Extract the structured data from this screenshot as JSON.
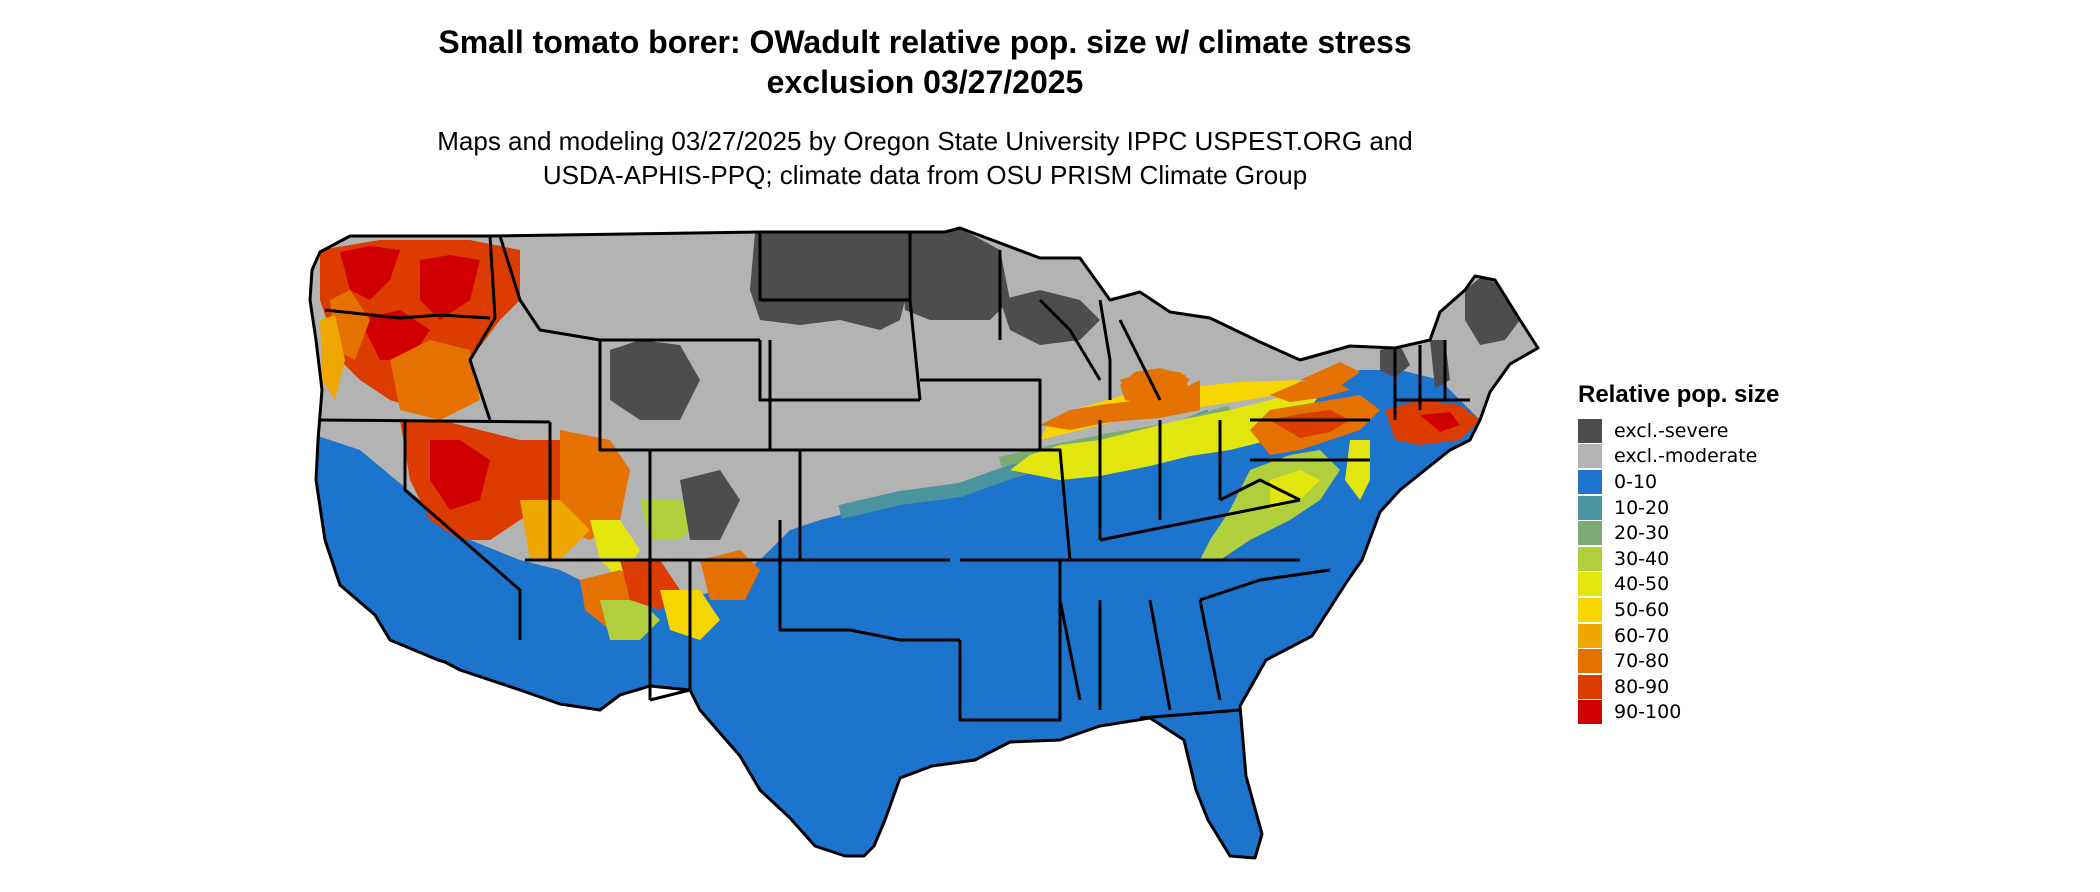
{
  "title_line1": "Small tomato borer: OWadult relative pop. size w/ climate stress",
  "title_line2": "exclusion 03/27/2025",
  "subtitle_line1": "Maps and modeling 03/27/2025 by Oregon State University IPPC USPEST.ORG and",
  "subtitle_line2": "USDA-APHIS-PPQ; climate data from OSU PRISM Climate Group",
  "legend": {
    "title": "Relative pop. size",
    "items": [
      {
        "label": "excl.-severe",
        "color": "#4d4d4d"
      },
      {
        "label": "excl.-moderate",
        "color": "#b3b3b3"
      },
      {
        "label": "0-10",
        "color": "#1c74cc"
      },
      {
        "label": "10-20",
        "color": "#4a94a0"
      },
      {
        "label": "20-30",
        "color": "#7bab72"
      },
      {
        "label": "30-40",
        "color": "#b1cf3d"
      },
      {
        "label": "40-50",
        "color": "#e3e60e"
      },
      {
        "label": "50-60",
        "color": "#f7d600"
      },
      {
        "label": "60-70",
        "color": "#eea700"
      },
      {
        "label": "70-80",
        "color": "#e57200"
      },
      {
        "label": "80-90",
        "color": "#dd3c00"
      },
      {
        "label": "90-100",
        "color": "#d10000"
      }
    ]
  }
}
